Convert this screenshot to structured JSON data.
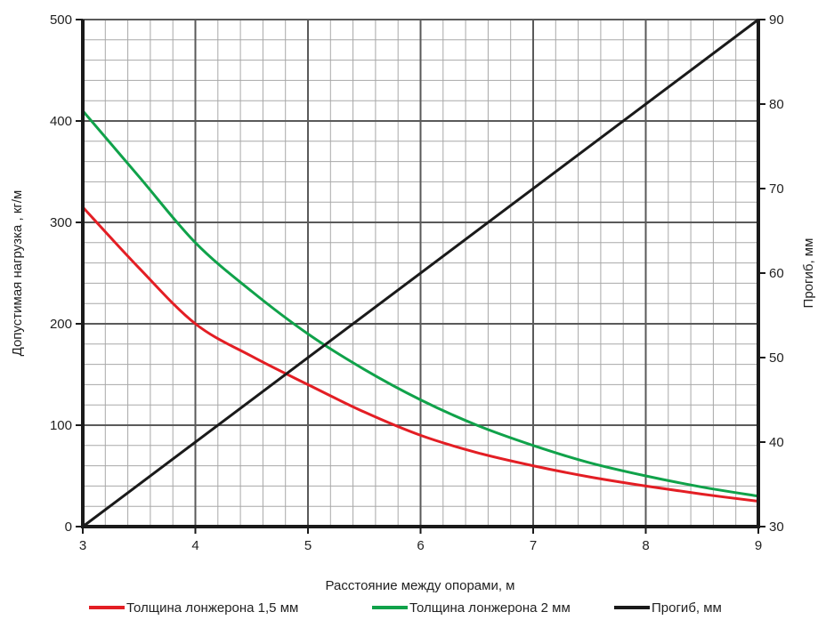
{
  "chart_data": {
    "type": "line",
    "xlabel": "Расстояние между опорами, м",
    "ylabel": "Допустимая нагрузка ,  кг/м",
    "y2label": "Прогиб, мм",
    "xlim": [
      3,
      9
    ],
    "ylim": [
      0,
      500
    ],
    "y2lim": [
      30,
      90
    ],
    "x_ticks": [
      3,
      4,
      5,
      6,
      7,
      8,
      9
    ],
    "y_ticks": [
      0,
      100,
      200,
      300,
      400,
      500
    ],
    "y2_ticks": [
      30,
      40,
      50,
      60,
      70,
      80,
      90
    ],
    "grid": true,
    "legend_position": "bottom",
    "series": [
      {
        "name": "Толщина лонжерона 1,5 мм",
        "color": "#e31e24",
        "axis": "left",
        "x": [
          3,
          3.5,
          4,
          4.5,
          5,
          5.5,
          6,
          6.5,
          7,
          7.5,
          8,
          8.5,
          9
        ],
        "y": [
          315,
          255,
          200,
          168,
          140,
          113,
          90,
          73,
          60,
          49,
          40,
          32,
          25
        ]
      },
      {
        "name": "Толщина лонжерона 2 мм",
        "color": "#10a24a",
        "axis": "left",
        "x": [
          3,
          3.5,
          4,
          4.5,
          5,
          5.5,
          6,
          6.5,
          7,
          7.5,
          8,
          8.5,
          9
        ],
        "y": [
          410,
          345,
          280,
          232,
          190,
          155,
          125,
          100,
          80,
          63,
          50,
          39,
          30
        ]
      },
      {
        "name": "Прогиб, мм",
        "color": "#1a1a1a",
        "axis": "right",
        "x": [
          3,
          9
        ],
        "y": [
          30,
          90
        ]
      }
    ]
  }
}
